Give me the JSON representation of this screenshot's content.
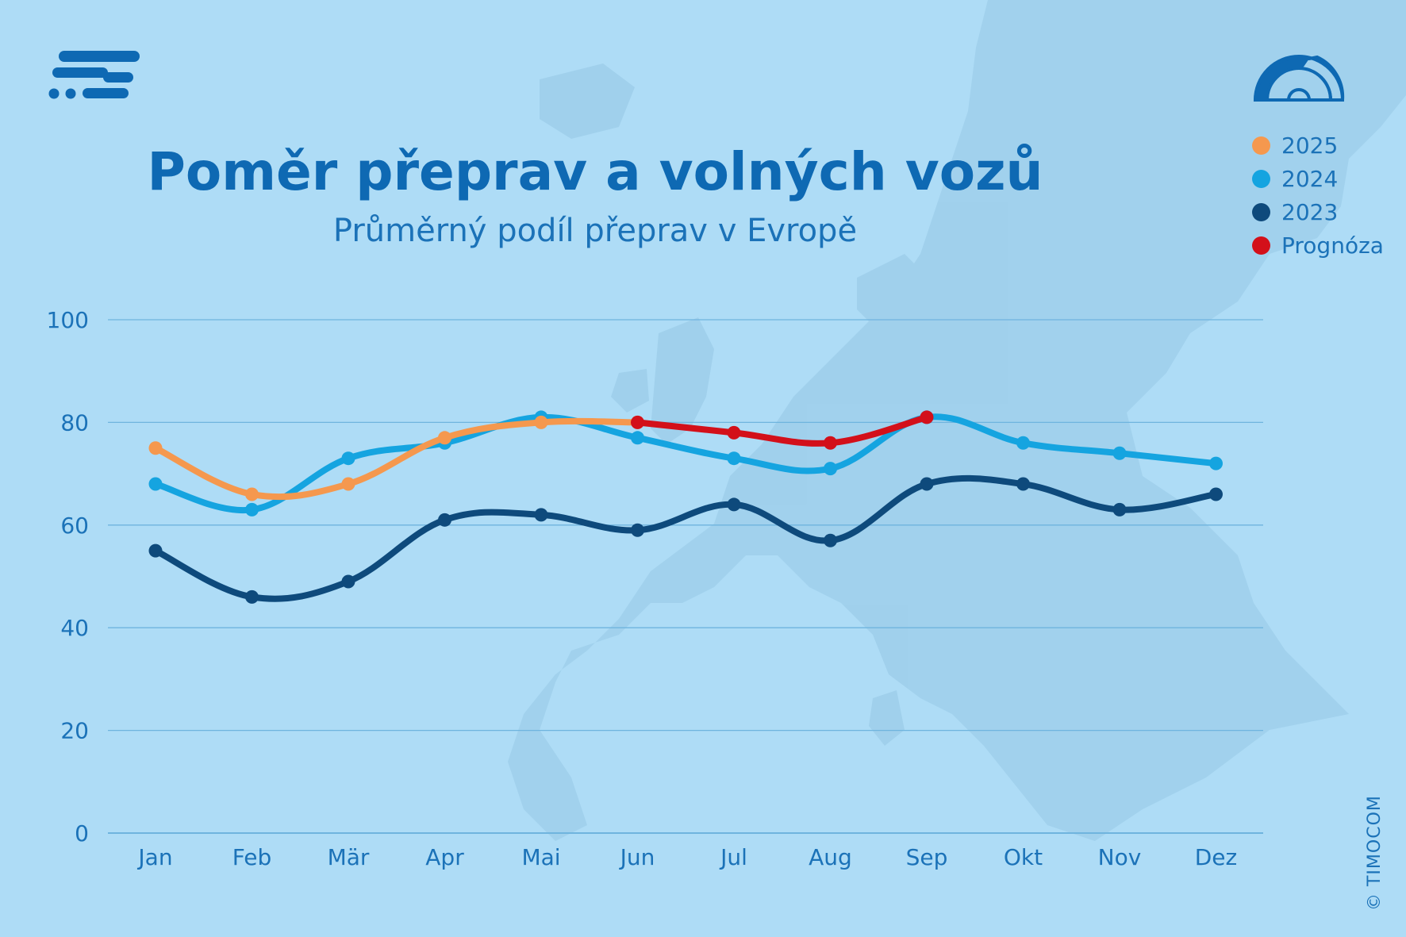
{
  "title": "Poměr přeprav a volných vozů",
  "subtitle": "Průměrný podíl přeprav v Evropě",
  "copyright": "© TIMOCOM",
  "icons": {
    "logo": "timocom-logo-icon",
    "gauge": "gauge-icon"
  },
  "colors": {
    "background": "#aedcf6",
    "text": "#1b72b8",
    "series_2025": "#f5984e",
    "series_2024": "#15a4e0",
    "series_2023": "#0e4a7c",
    "series_prognoza": "#d3101a",
    "grid": "#6fb4de"
  },
  "legend": [
    {
      "label": "2025",
      "color": "#f5984e"
    },
    {
      "label": "2024",
      "color": "#15a4e0"
    },
    {
      "label": "2023",
      "color": "#0e4a7c"
    },
    {
      "label": "Prognóza",
      "color": "#d3101a"
    }
  ],
  "chart_data": {
    "type": "line",
    "title": "Poměr přeprav a volných vozů",
    "subtitle": "Průměrný podíl přeprav v Evropě",
    "categories": [
      "Jan",
      "Feb",
      "Mär",
      "Apr",
      "Mai",
      "Jun",
      "Jul",
      "Aug",
      "Sep",
      "Okt",
      "Nov",
      "Dez"
    ],
    "yticks": [
      0,
      20,
      40,
      60,
      80,
      100
    ],
    "ylim": [
      0,
      100
    ],
    "grid": true,
    "legend_position": "top-right",
    "series": [
      {
        "name": "2023",
        "color": "#0e4a7c",
        "values": [
          55,
          46,
          49,
          61,
          62,
          59,
          64,
          57,
          68,
          68,
          63,
          66
        ]
      },
      {
        "name": "2024",
        "color": "#15a4e0",
        "values": [
          68,
          63,
          73,
          76,
          81,
          77,
          73,
          71,
          81,
          76,
          74,
          72
        ]
      },
      {
        "name": "2025",
        "color": "#f5984e",
        "values": [
          75,
          66,
          68,
          77,
          80,
          80,
          null,
          null,
          null,
          null,
          null,
          null
        ]
      },
      {
        "name": "Prognóza",
        "color": "#d3101a",
        "values": [
          null,
          null,
          null,
          null,
          null,
          80,
          78,
          76,
          81,
          null,
          null,
          null
        ]
      }
    ]
  }
}
